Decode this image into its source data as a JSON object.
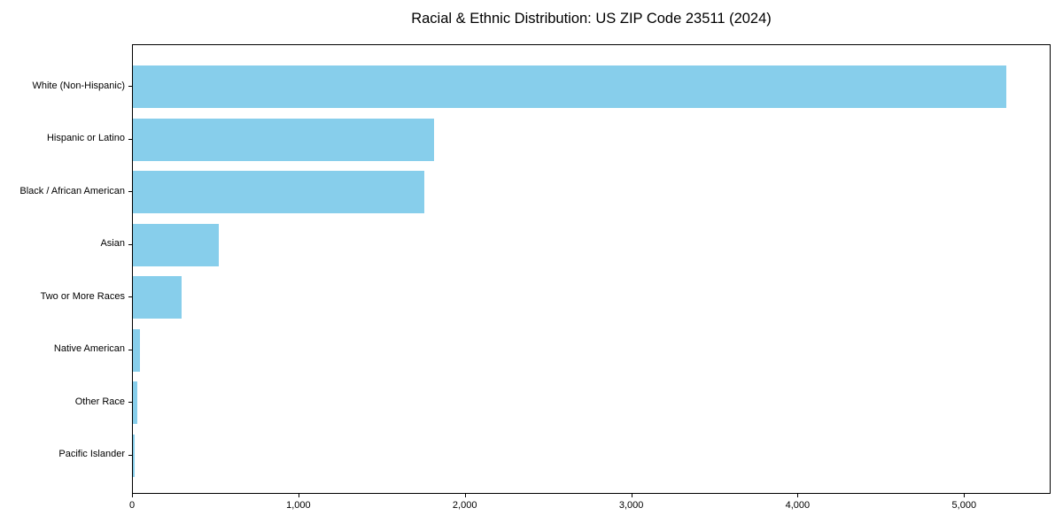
{
  "title": "Racial & Ethnic Distribution: US ZIP Code 23511 (2024)",
  "chart_data": {
    "type": "bar",
    "orientation": "horizontal",
    "title": "Racial & Ethnic Distribution: US ZIP Code 23511 (2024)",
    "categories": [
      "White (Non-Hispanic)",
      "Hispanic or Latino",
      "Black / African American",
      "Asian",
      "Two or More Races",
      "Native American",
      "Other Race",
      "Pacific Islander"
    ],
    "values": [
      5250,
      1810,
      1750,
      515,
      290,
      42,
      24,
      10
    ],
    "xlabel": "",
    "ylabel": "",
    "xlim": [
      0,
      5520
    ],
    "xticks": [
      0,
      1000,
      2000,
      3000,
      4000,
      5000
    ],
    "xtick_labels": [
      "0",
      "1,000",
      "2,000",
      "3,000",
      "4,000",
      "5,000"
    ],
    "bar_color": "#87CEEB",
    "axis_color": "#000000",
    "background_color": "#ffffff",
    "grid": false,
    "legend": "none"
  }
}
